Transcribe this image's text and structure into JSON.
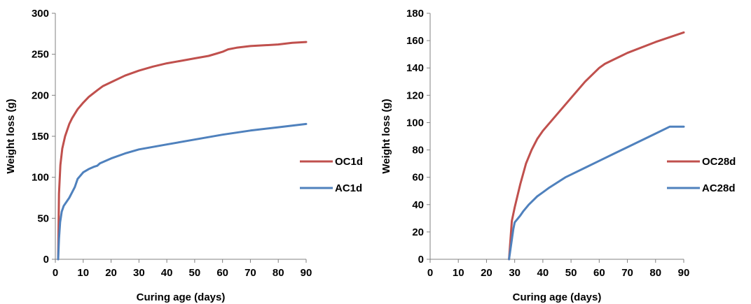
{
  "chart_data": [
    {
      "type": "line",
      "title": "",
      "xlabel": "Curing age (days)",
      "ylabel": "Weight loss (g)",
      "xlim": [
        0,
        90
      ],
      "ylim": [
        0,
        300
      ],
      "xticks": [
        0,
        10,
        20,
        30,
        40,
        50,
        60,
        70,
        80,
        90
      ],
      "yticks": [
        0,
        50,
        100,
        150,
        200,
        250,
        300
      ],
      "grid": false,
      "legend": "right",
      "series": [
        {
          "name": "OC1d",
          "color": "#c0504d",
          "x": [
            1,
            1.3,
            1.8,
            2.5,
            3.5,
            5,
            6,
            8,
            10,
            12,
            15,
            17,
            20,
            25,
            30,
            35,
            40,
            45,
            50,
            55,
            58,
            60,
            62,
            65,
            70,
            75,
            80,
            85,
            90
          ],
          "y": [
            0,
            80,
            115,
            135,
            150,
            165,
            172,
            183,
            191,
            198,
            206,
            211,
            216,
            224,
            230,
            235,
            239,
            242,
            245,
            248,
            251,
            253,
            256,
            258,
            260,
            261,
            262,
            264,
            265
          ]
        },
        {
          "name": "AC1d",
          "color": "#4f81bd",
          "x": [
            1,
            1.3,
            1.7,
            2.3,
            3,
            5,
            7,
            8,
            10,
            12,
            14,
            15,
            16,
            18,
            20,
            25,
            30,
            40,
            50,
            60,
            70,
            80,
            90
          ],
          "y": [
            0,
            25,
            45,
            58,
            65,
            75,
            88,
            98,
            106,
            110,
            113,
            114,
            117,
            120,
            123,
            129,
            134,
            140,
            146,
            152,
            157,
            161,
            165
          ]
        }
      ]
    },
    {
      "type": "line",
      "title": "",
      "xlabel": "Curing age (days)",
      "ylabel": "Weight loss (g)",
      "xlim": [
        0,
        90
      ],
      "ylim": [
        0,
        180
      ],
      "xticks": [
        0,
        10,
        20,
        30,
        40,
        50,
        60,
        70,
        80,
        90
      ],
      "yticks": [
        0,
        20,
        40,
        60,
        80,
        100,
        120,
        140,
        160,
        180
      ],
      "grid": false,
      "legend": "right",
      "series": [
        {
          "name": "OC28d",
          "color": "#c0504d",
          "x": [
            28,
            29,
            30,
            32,
            34,
            36,
            38,
            40,
            45,
            50,
            55,
            60,
            62,
            65,
            70,
            80,
            90
          ],
          "y": [
            0,
            28,
            38,
            55,
            70,
            80,
            88,
            94,
            106,
            118,
            130,
            140,
            143,
            146,
            151,
            159,
            166
          ]
        },
        {
          "name": "AC28d",
          "color": "#4f81bd",
          "x": [
            28,
            29.5,
            30,
            32,
            33,
            35,
            38,
            40,
            42,
            45,
            48,
            50,
            55,
            60,
            65,
            70,
            75,
            80,
            85,
            90
          ],
          "y": [
            0,
            22,
            27,
            32,
            35,
            40,
            46,
            49,
            52,
            56,
            60,
            62,
            67,
            72,
            77,
            82,
            87,
            92,
            97,
            97
          ]
        }
      ]
    }
  ]
}
